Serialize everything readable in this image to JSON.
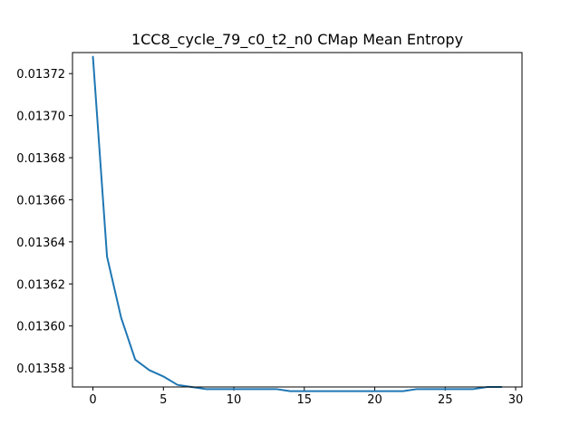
{
  "chart_data": {
    "type": "line",
    "title": "1CC8_cycle_79_c0_t2_n0 CMap Mean Entropy",
    "xlabel": "",
    "ylabel": "",
    "xlim": [
      -1.45,
      30.45
    ],
    "ylim": [
      0.013571,
      0.01373
    ],
    "grid": false,
    "legend": "none",
    "x_ticks": [
      0,
      5,
      10,
      15,
      20,
      25,
      30
    ],
    "x_tick_labels": [
      "0",
      "5",
      "10",
      "15",
      "20",
      "25",
      "30"
    ],
    "y_ticks": [
      0.01358,
      0.0136,
      0.01362,
      0.01364,
      0.01366,
      0.01368,
      0.0137,
      0.01372
    ],
    "y_tick_labels": [
      "0.01358",
      "0.01360",
      "0.01362",
      "0.01364",
      "0.01366",
      "0.01368",
      "0.01370",
      "0.01372"
    ],
    "series": [
      {
        "color": "#1f77b4",
        "x": [
          0,
          1,
          2,
          3,
          4,
          5,
          6,
          7,
          8,
          9,
          10,
          11,
          12,
          13,
          14,
          15,
          16,
          17,
          18,
          19,
          20,
          21,
          22,
          23,
          24,
          25,
          26,
          27,
          28,
          29
        ],
        "values": [
          0.013728,
          0.013633,
          0.013604,
          0.013584,
          0.013579,
          0.013576,
          0.013572,
          0.013571,
          0.01357,
          0.01357,
          0.01357,
          0.01357,
          0.01357,
          0.01357,
          0.013569,
          0.013569,
          0.013569,
          0.013569,
          0.013569,
          0.013569,
          0.013569,
          0.013569,
          0.013569,
          0.01357,
          0.01357,
          0.01357,
          0.01357,
          0.01357,
          0.013571,
          0.013571
        ]
      }
    ]
  }
}
